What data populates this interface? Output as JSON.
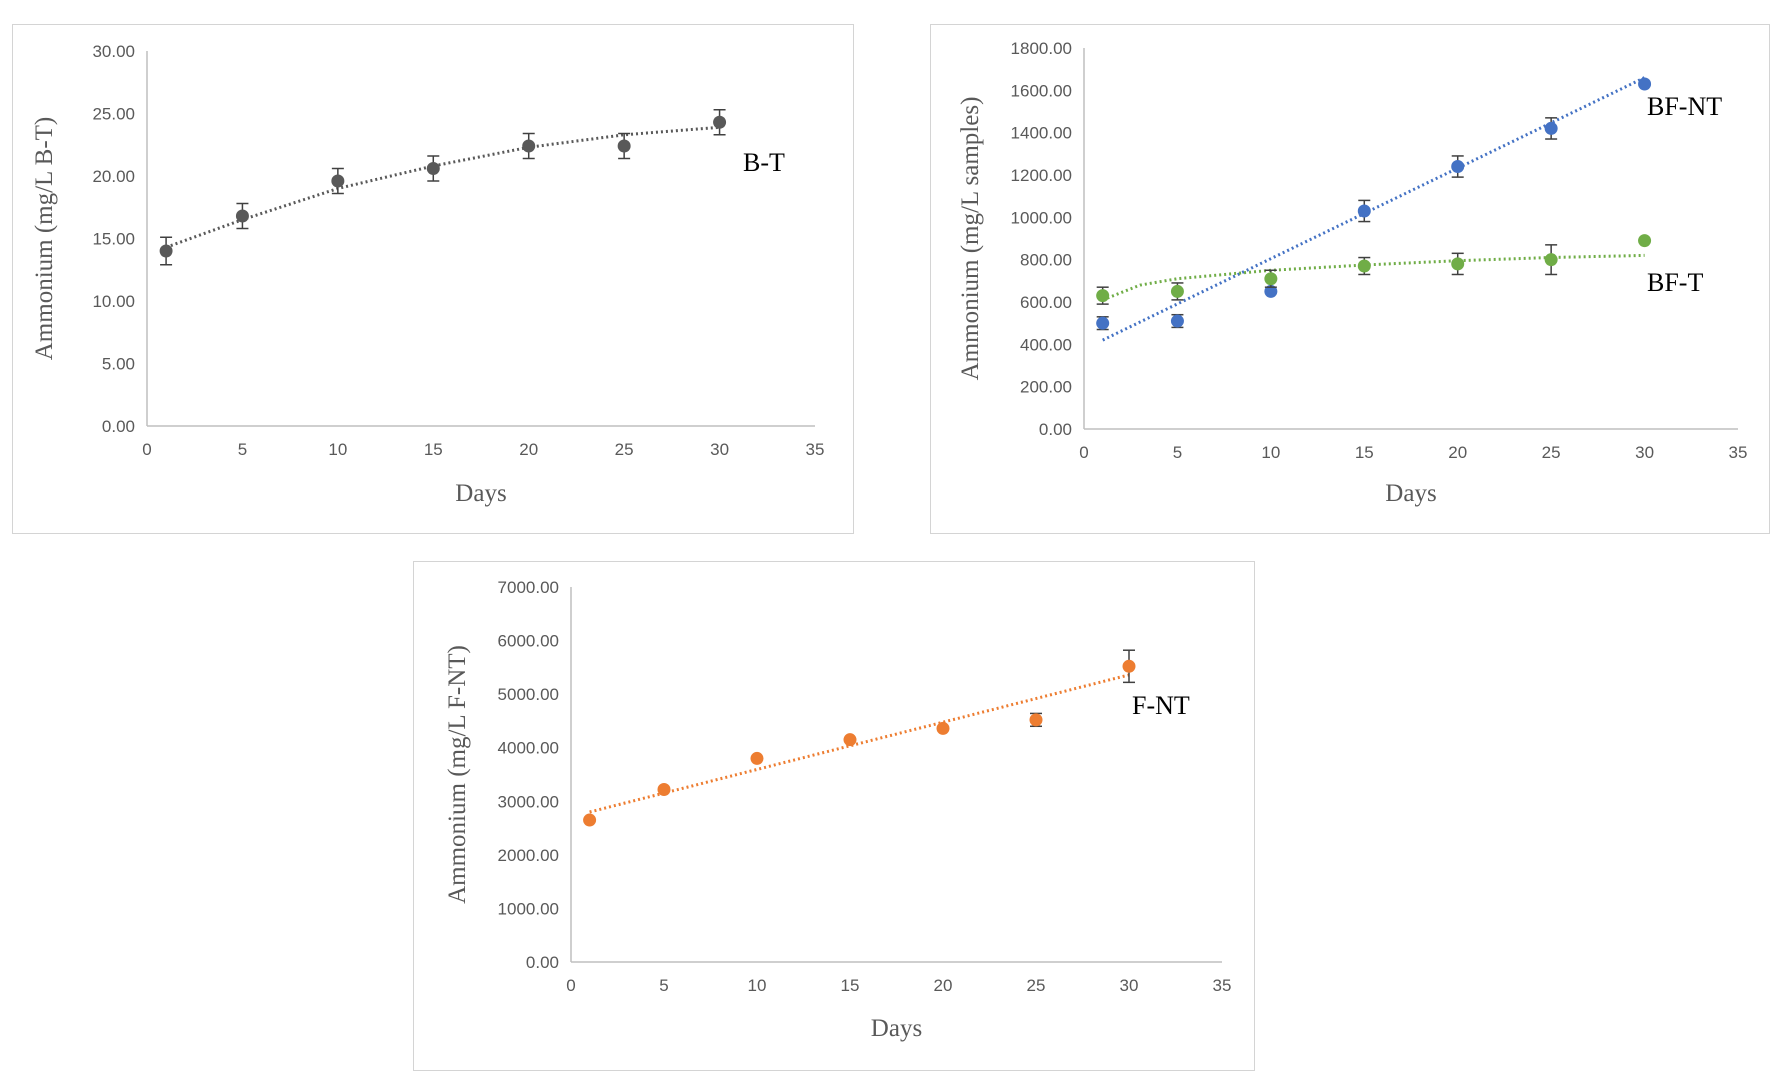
{
  "chart_data": [
    {
      "type": "scatter",
      "title": "",
      "xlabel": "Days",
      "ylabel": "Ammonium (mg/L B-T)",
      "xlim": [
        0,
        35
      ],
      "ylim": [
        0,
        30
      ],
      "xticks": [
        "0",
        "5",
        "10",
        "15",
        "20",
        "25",
        "30",
        "35"
      ],
      "yticks": [
        "0.00",
        "5.00",
        "10.00",
        "15.00",
        "20.00",
        "25.00",
        "30.00"
      ],
      "grid": false,
      "series": [
        {
          "name": "B-T",
          "label": "B-T",
          "color": "#595959",
          "x": [
            1,
            5,
            10,
            15,
            20,
            25,
            30
          ],
          "y": [
            14.0,
            16.8,
            19.6,
            20.6,
            22.4,
            22.4,
            24.3
          ],
          "err": [
            1.1,
            1.0,
            1.0,
            1.0,
            1.0,
            1.0,
            1.0
          ],
          "trend": "poly2",
          "trend_points": [
            [
              1,
              14.3
            ],
            [
              5,
              16.5
            ],
            [
              10,
              19.0
            ],
            [
              15,
              20.8
            ],
            [
              20,
              22.3
            ],
            [
              25,
              23.3
            ],
            [
              30,
              23.9
            ]
          ]
        }
      ]
    },
    {
      "type": "scatter",
      "title": "",
      "xlabel": "Days",
      "ylabel": "Ammonium (mg/L samples)",
      "xlim": [
        0,
        35
      ],
      "ylim": [
        0,
        1800
      ],
      "xticks": [
        "0",
        "5",
        "10",
        "15",
        "20",
        "25",
        "30",
        "35"
      ],
      "yticks": [
        "0.00",
        "200.00",
        "400.00",
        "600.00",
        "800.00",
        "1000.00",
        "1200.00",
        "1400.00",
        "1600.00",
        "1800.00"
      ],
      "grid": false,
      "series": [
        {
          "name": "BF-NT",
          "label": "BF-NT",
          "color": "#4472c4",
          "x": [
            1,
            5,
            10,
            15,
            20,
            25,
            30
          ],
          "y": [
            500,
            510,
            650,
            1030,
            1240,
            1420,
            1630
          ],
          "err": [
            30,
            30,
            0,
            50,
            50,
            50,
            0
          ],
          "trend": "linear",
          "trend_points": [
            [
              1,
              420
            ],
            [
              30,
              1660
            ]
          ]
        },
        {
          "name": "BF-T",
          "label": "BF-T",
          "color": "#70ad47",
          "x": [
            1,
            5,
            10,
            15,
            20,
            25,
            30
          ],
          "y": [
            630,
            650,
            710,
            770,
            780,
            800,
            890
          ],
          "err": [
            40,
            40,
            40,
            40,
            50,
            70,
            0
          ],
          "trend": "log",
          "trend_points": [
            [
              1,
              610
            ],
            [
              3,
              680
            ],
            [
              5,
              710
            ],
            [
              10,
              750
            ],
            [
              15,
              775
            ],
            [
              20,
              795
            ],
            [
              25,
              810
            ],
            [
              30,
              820
            ]
          ]
        }
      ]
    },
    {
      "type": "scatter",
      "title": "",
      "xlabel": "Days",
      "ylabel": "Ammonium (mg/L F-NT)",
      "xlim": [
        0,
        35
      ],
      "ylim": [
        0,
        7000
      ],
      "xticks": [
        "0",
        "5",
        "10",
        "15",
        "20",
        "25",
        "30",
        "35"
      ],
      "yticks": [
        "0.00",
        "1000.00",
        "2000.00",
        "3000.00",
        "4000.00",
        "5000.00",
        "6000.00",
        "7000.00"
      ],
      "grid": false,
      "series": [
        {
          "name": "F-NT",
          "label": "F-NT",
          "color": "#ed7d31",
          "x": [
            1,
            5,
            10,
            15,
            20,
            25,
            30
          ],
          "y": [
            2650,
            3220,
            3800,
            4150,
            4360,
            4520,
            5520
          ],
          "err": [
            0,
            0,
            0,
            0,
            0,
            120,
            300
          ],
          "trend": "linear",
          "trend_points": [
            [
              1,
              2800
            ],
            [
              30,
              5360
            ]
          ]
        }
      ]
    }
  ]
}
